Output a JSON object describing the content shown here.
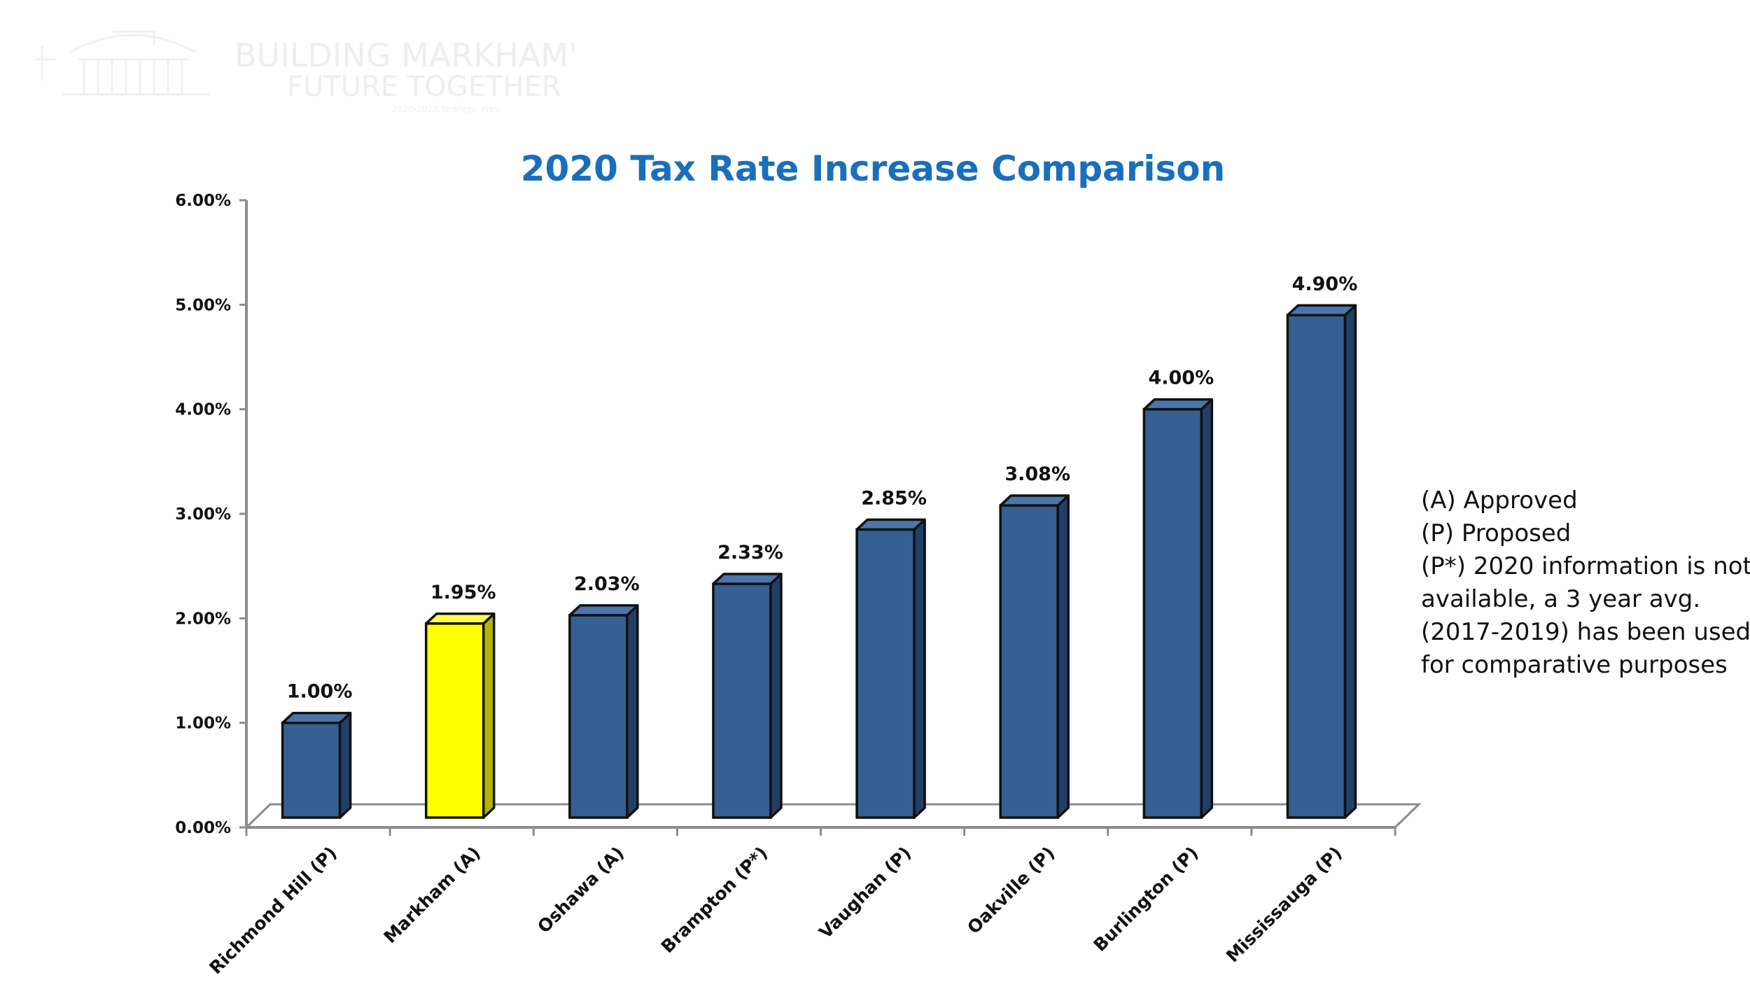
{
  "title": "2020 Tax Rate Increase Comparison",
  "logo": {
    "line1": "BUILDING MARKHAM'S",
    "line2": "FUTURE TOGETHER",
    "line3": "2020-2023 Strategic Plan"
  },
  "legend_notes": [
    "(A) Approved",
    "(P) Proposed",
    "(P*) 2020 information is not",
    "available, a 3 year avg.",
    "(2017-2019) has been used",
    "for comparative purposes"
  ],
  "chart_data": {
    "type": "bar",
    "title": "2020 Tax Rate Increase Comparison",
    "xlabel": "",
    "ylabel": "",
    "categories": [
      "Richmond Hill (P)",
      "Markham (A)",
      "Oshawa (A)",
      "Brampton (P*)",
      "Vaughan (P)",
      "Oakville (P)",
      "Burlington (P)",
      "Mississauga (P)"
    ],
    "series": [
      {
        "values": [
          1.0,
          1.95,
          2.03,
          2.33,
          2.85,
          3.08,
          4.0,
          4.9
        ]
      }
    ],
    "data_labels": [
      "1.00%",
      "1.95%",
      "2.03%",
      "2.33%",
      "2.85%",
      "3.08%",
      "4.00%",
      "4.90%"
    ],
    "ylim": [
      0,
      6
    ],
    "yticks": [
      0,
      1,
      2,
      3,
      4,
      5,
      6
    ],
    "ytick_labels": [
      "0.00%",
      "1.00%",
      "2.00%",
      "3.00%",
      "4.00%",
      "5.00%",
      "6.00%"
    ],
    "highlight_index": 1,
    "colors": {
      "bar": "#355f93",
      "bar_side": "#223f66",
      "bar_top": "#4a76ab",
      "highlight": "#ffff00",
      "highlight_side": "#b4b400",
      "highlight_top": "#ffff4d",
      "title": "#1a6fba",
      "axis": "#8c8c8c"
    },
    "grid": false,
    "legend": "none"
  }
}
